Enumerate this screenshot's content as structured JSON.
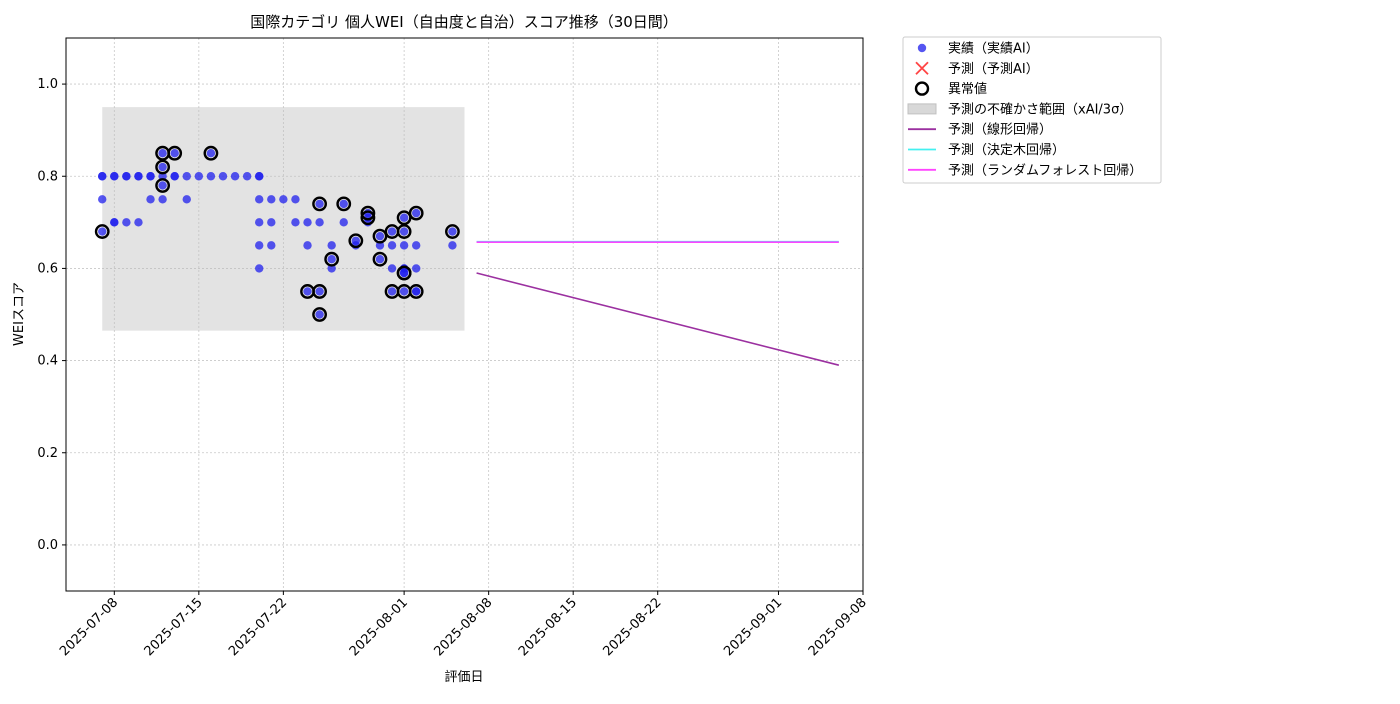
{
  "chart_data": {
    "type": "scatter",
    "title": "国際カテゴリ 個人WEI（自由度と自治）スコア推移（30日間）",
    "xlabel": "評価日",
    "ylabel": "WEIスコア",
    "xlim": [
      "2025-07-04",
      "2025-09-08"
    ],
    "ylim": [
      -0.1,
      1.1
    ],
    "yticks": [
      0.0,
      0.2,
      0.4,
      0.6,
      0.8,
      1.0
    ],
    "ytick_labels": [
      "0.0",
      "0.2",
      "0.4",
      "0.6",
      "0.8",
      "1.0"
    ],
    "xticks": [
      "2025-07-08",
      "2025-07-15",
      "2025-07-22",
      "2025-08-01",
      "2025-08-08",
      "2025-08-15",
      "2025-08-22",
      "2025-09-01",
      "2025-09-08"
    ],
    "xtick_labels": [
      "2025-07-08",
      "2025-07-15",
      "2025-07-22",
      "2025-08-01",
      "2025-08-08",
      "2025-08-15",
      "2025-08-22",
      "2025-09-01",
      "2025-09-08"
    ],
    "grid": true,
    "legend_position": "outside-top-right",
    "legend": [
      {
        "key": "actual",
        "label": "実績（実績AI）",
        "marker": "dot",
        "color": "#2b2bee"
      },
      {
        "key": "forecast",
        "label": "予測（予測AI）",
        "marker": "x",
        "color": "#ff4444"
      },
      {
        "key": "anomaly",
        "label": "異常値",
        "marker": "ring",
        "color": "#000000"
      },
      {
        "key": "band",
        "label": "予測の不確かさ範囲（xAI/3σ）",
        "marker": "patch",
        "color": "#d8d8d8"
      },
      {
        "key": "linear",
        "label": "予測（線形回帰）",
        "marker": "line",
        "color": "#9b30a0"
      },
      {
        "key": "tree",
        "label": "予測（決定木回帰）",
        "marker": "line",
        "color": "#44f0f0"
      },
      {
        "key": "forest",
        "label": "予測（ランダムフォレスト回帰）",
        "marker": "line",
        "color": "#ff44ff"
      }
    ],
    "uncertainty_band": {
      "x": [
        "2025-07-07",
        "2025-08-06"
      ],
      "y": [
        0.465,
        0.95
      ]
    },
    "series": [
      {
        "key": "actual",
        "name": "実績（実績AI）",
        "color": "#1f1fee",
        "points": [
          [
            "2025-07-07",
            0.8
          ],
          [
            "2025-07-07",
            0.68
          ],
          [
            "2025-07-07",
            0.8
          ],
          [
            "2025-07-07",
            0.75
          ],
          [
            "2025-07-08",
            0.8
          ],
          [
            "2025-07-08",
            0.7
          ],
          [
            "2025-07-08",
            0.8
          ],
          [
            "2025-07-08",
            0.7
          ],
          [
            "2025-07-09",
            0.8
          ],
          [
            "2025-07-09",
            0.8
          ],
          [
            "2025-07-09",
            0.7
          ],
          [
            "2025-07-10",
            0.8
          ],
          [
            "2025-07-10",
            0.8
          ],
          [
            "2025-07-10",
            0.7
          ],
          [
            "2025-07-11",
            0.8
          ],
          [
            "2025-07-11",
            0.8
          ],
          [
            "2025-07-11",
            0.75
          ],
          [
            "2025-07-12",
            0.8
          ],
          [
            "2025-07-12",
            0.75
          ],
          [
            "2025-07-12",
            0.82
          ],
          [
            "2025-07-12",
            0.78
          ],
          [
            "2025-07-12",
            0.85
          ],
          [
            "2025-07-13",
            0.8
          ],
          [
            "2025-07-13",
            0.85
          ],
          [
            "2025-07-13",
            0.8
          ],
          [
            "2025-07-14",
            0.8
          ],
          [
            "2025-07-14",
            0.75
          ],
          [
            "2025-07-15",
            0.8
          ],
          [
            "2025-07-16",
            0.85
          ],
          [
            "2025-07-16",
            0.8
          ],
          [
            "2025-07-17",
            0.8
          ],
          [
            "2025-07-18",
            0.8
          ],
          [
            "2025-07-19",
            0.8
          ],
          [
            "2025-07-20",
            0.8
          ],
          [
            "2025-07-20",
            0.75
          ],
          [
            "2025-07-20",
            0.7
          ],
          [
            "2025-07-20",
            0.65
          ],
          [
            "2025-07-20",
            0.6
          ],
          [
            "2025-07-20",
            0.8
          ],
          [
            "2025-07-21",
            0.75
          ],
          [
            "2025-07-21",
            0.7
          ],
          [
            "2025-07-21",
            0.65
          ],
          [
            "2025-07-22",
            0.75
          ],
          [
            "2025-07-23",
            0.7
          ],
          [
            "2025-07-23",
            0.75
          ],
          [
            "2025-07-24",
            0.65
          ],
          [
            "2025-07-24",
            0.7
          ],
          [
            "2025-07-24",
            0.55
          ],
          [
            "2025-07-25",
            0.5
          ],
          [
            "2025-07-25",
            0.55
          ],
          [
            "2025-07-25",
            0.74
          ],
          [
            "2025-07-25",
            0.7
          ],
          [
            "2025-07-26",
            0.62
          ],
          [
            "2025-07-26",
            0.65
          ],
          [
            "2025-07-26",
            0.6
          ],
          [
            "2025-07-27",
            0.7
          ],
          [
            "2025-07-27",
            0.74
          ],
          [
            "2025-07-28",
            0.66
          ],
          [
            "2025-07-28",
            0.65
          ],
          [
            "2025-07-29",
            0.72
          ],
          [
            "2025-07-29",
            0.71
          ],
          [
            "2025-07-29",
            0.7
          ],
          [
            "2025-07-30",
            0.67
          ],
          [
            "2025-07-30",
            0.65
          ],
          [
            "2025-07-30",
            0.62
          ],
          [
            "2025-07-31",
            0.68
          ],
          [
            "2025-07-31",
            0.65
          ],
          [
            "2025-07-31",
            0.6
          ],
          [
            "2025-07-31",
            0.55
          ],
          [
            "2025-08-01",
            0.59
          ],
          [
            "2025-08-01",
            0.59
          ],
          [
            "2025-08-01",
            0.6
          ],
          [
            "2025-08-01",
            0.71
          ],
          [
            "2025-08-01",
            0.68
          ],
          [
            "2025-08-01",
            0.65
          ],
          [
            "2025-08-01",
            0.6
          ],
          [
            "2025-08-01",
            0.55
          ],
          [
            "2025-08-02",
            0.72
          ],
          [
            "2025-08-02",
            0.65
          ],
          [
            "2025-08-02",
            0.6
          ],
          [
            "2025-08-02",
            0.55
          ],
          [
            "2025-08-02",
            0.55
          ],
          [
            "2025-08-05",
            0.68
          ],
          [
            "2025-08-05",
            0.65
          ]
        ]
      },
      {
        "key": "anomaly",
        "name": "異常値",
        "color": "#000000",
        "points": [
          [
            "2025-07-07",
            0.68
          ],
          [
            "2025-07-12",
            0.85
          ],
          [
            "2025-07-12",
            0.82
          ],
          [
            "2025-07-12",
            0.78
          ],
          [
            "2025-07-13",
            0.85
          ],
          [
            "2025-07-16",
            0.85
          ],
          [
            "2025-07-24",
            0.55
          ],
          [
            "2025-07-25",
            0.55
          ],
          [
            "2025-07-25",
            0.5
          ],
          [
            "2025-07-25",
            0.74
          ],
          [
            "2025-07-26",
            0.62
          ],
          [
            "2025-07-27",
            0.74
          ],
          [
            "2025-07-28",
            0.66
          ],
          [
            "2025-07-29",
            0.72
          ],
          [
            "2025-07-29",
            0.71
          ],
          [
            "2025-07-30",
            0.67
          ],
          [
            "2025-07-30",
            0.62
          ],
          [
            "2025-07-31",
            0.68
          ],
          [
            "2025-07-31",
            0.55
          ],
          [
            "2025-08-01",
            0.59
          ],
          [
            "2025-08-01",
            0.59
          ],
          [
            "2025-08-01",
            0.71
          ],
          [
            "2025-08-01",
            0.68
          ],
          [
            "2025-08-01",
            0.55
          ],
          [
            "2025-08-02",
            0.72
          ],
          [
            "2025-08-02",
            0.55
          ],
          [
            "2025-08-05",
            0.68
          ]
        ]
      },
      {
        "key": "linear",
        "name": "予測（線形回帰）",
        "color": "#9b30a0",
        "line": [
          [
            "2025-08-07",
            0.59
          ],
          [
            "2025-09-06",
            0.39
          ]
        ]
      },
      {
        "key": "tree",
        "name": "予測（決定木回帰）",
        "color": "#44f0f0",
        "line": [
          [
            "2025-08-07",
            0.658
          ],
          [
            "2025-09-06",
            0.658
          ]
        ]
      },
      {
        "key": "forest",
        "name": "予測（ランダムフォレスト回帰）",
        "color": "#ff44ff",
        "line": [
          [
            "2025-08-07",
            0.657
          ],
          [
            "2025-09-06",
            0.657
          ]
        ]
      }
    ]
  }
}
